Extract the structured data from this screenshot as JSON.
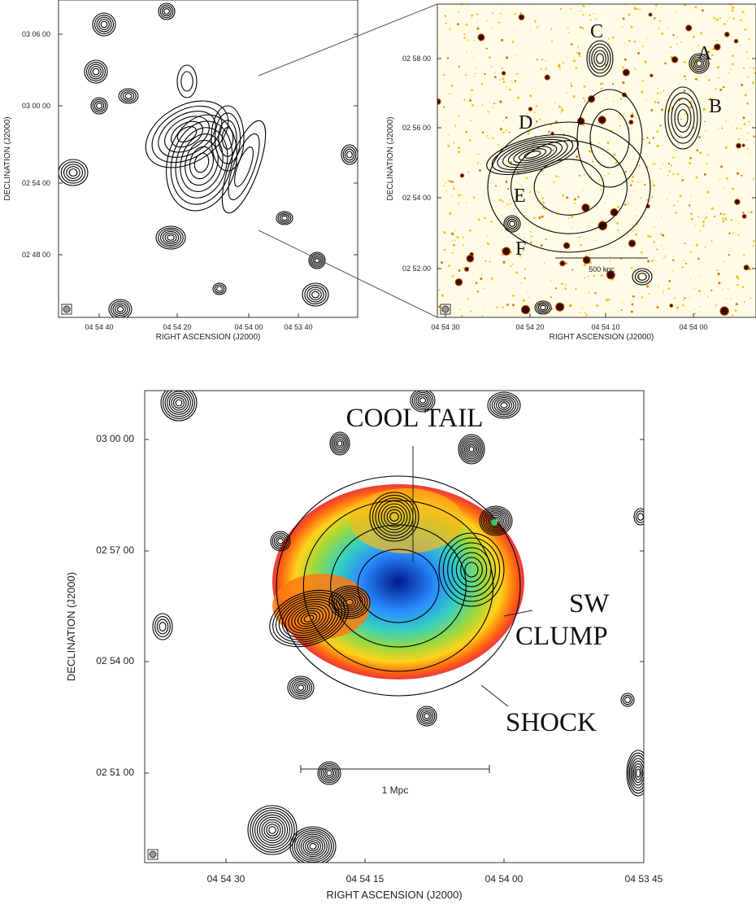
{
  "panels": [
    {
      "y_label": "DECLINATION (J2000)",
      "x_label": "RIGHT ASCENSION (J2000)",
      "yticks": [
        "03 06 00",
        "03 00 00",
        "02 54 00",
        "02 48 00"
      ],
      "xticks": [
        "04 54 40",
        "04 54 20",
        "04 54 00",
        "04 53 40"
      ]
    },
    {
      "y_label": "DECLINATION (J2000)",
      "x_label": "RIGHT ASCENSION (J2000)",
      "yticks": [
        "02 58 00",
        "02 56 00",
        "02 54 00",
        "02 52 00"
      ],
      "xticks": [
        "04 54 30",
        "04 54 20",
        "04 54 10",
        "04 54 00"
      ],
      "labels": [
        "A",
        "B",
        "C",
        "D",
        "E",
        "F"
      ],
      "scale_bar": "500 kpc"
    },
    {
      "y_label": "DECLINATION (J2000)",
      "x_label": "RIGHT ASCENSION (J2000)",
      "yticks": [
        "03 00 00",
        "02 57 00",
        "02 54 00",
        "02 51 00"
      ],
      "xticks": [
        "04 54 30",
        "04 54 15",
        "04 54 00",
        "04 53 45"
      ],
      "annotations": [
        "COOL TAIL",
        "SW",
        "CLUMP",
        "SHOCK"
      ],
      "scale_bar": "1 Mpc"
    }
  ]
}
